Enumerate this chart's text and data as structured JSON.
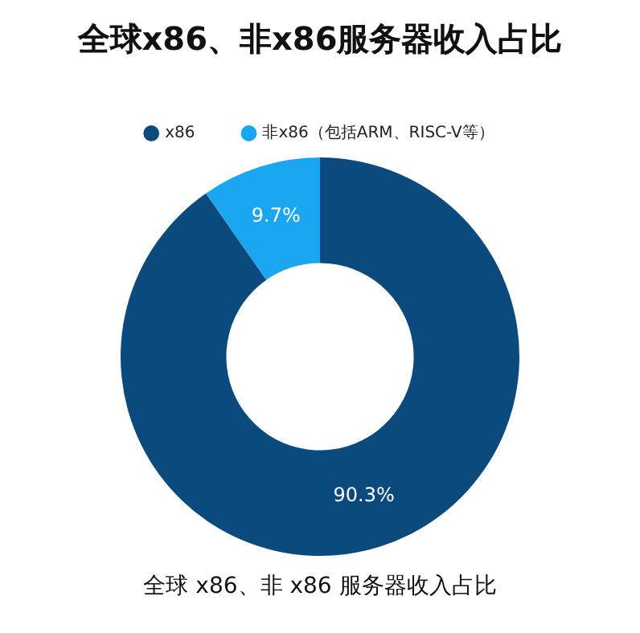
{
  "chart_data": {
    "type": "donut",
    "title": "全球x86、非x86服务器收入占比",
    "categories": [
      "x86",
      "非x86（包括ARM、RISC-V等）"
    ],
    "values": [
      90.3,
      9.7
    ],
    "value_labels": [
      "90.3%",
      "9.7%"
    ],
    "colors": [
      "#0b4a7d",
      "#1ba6f2"
    ],
    "legend": "top",
    "annotations": [
      "全球 x86、非 x86 服务器收入占比"
    ]
  }
}
